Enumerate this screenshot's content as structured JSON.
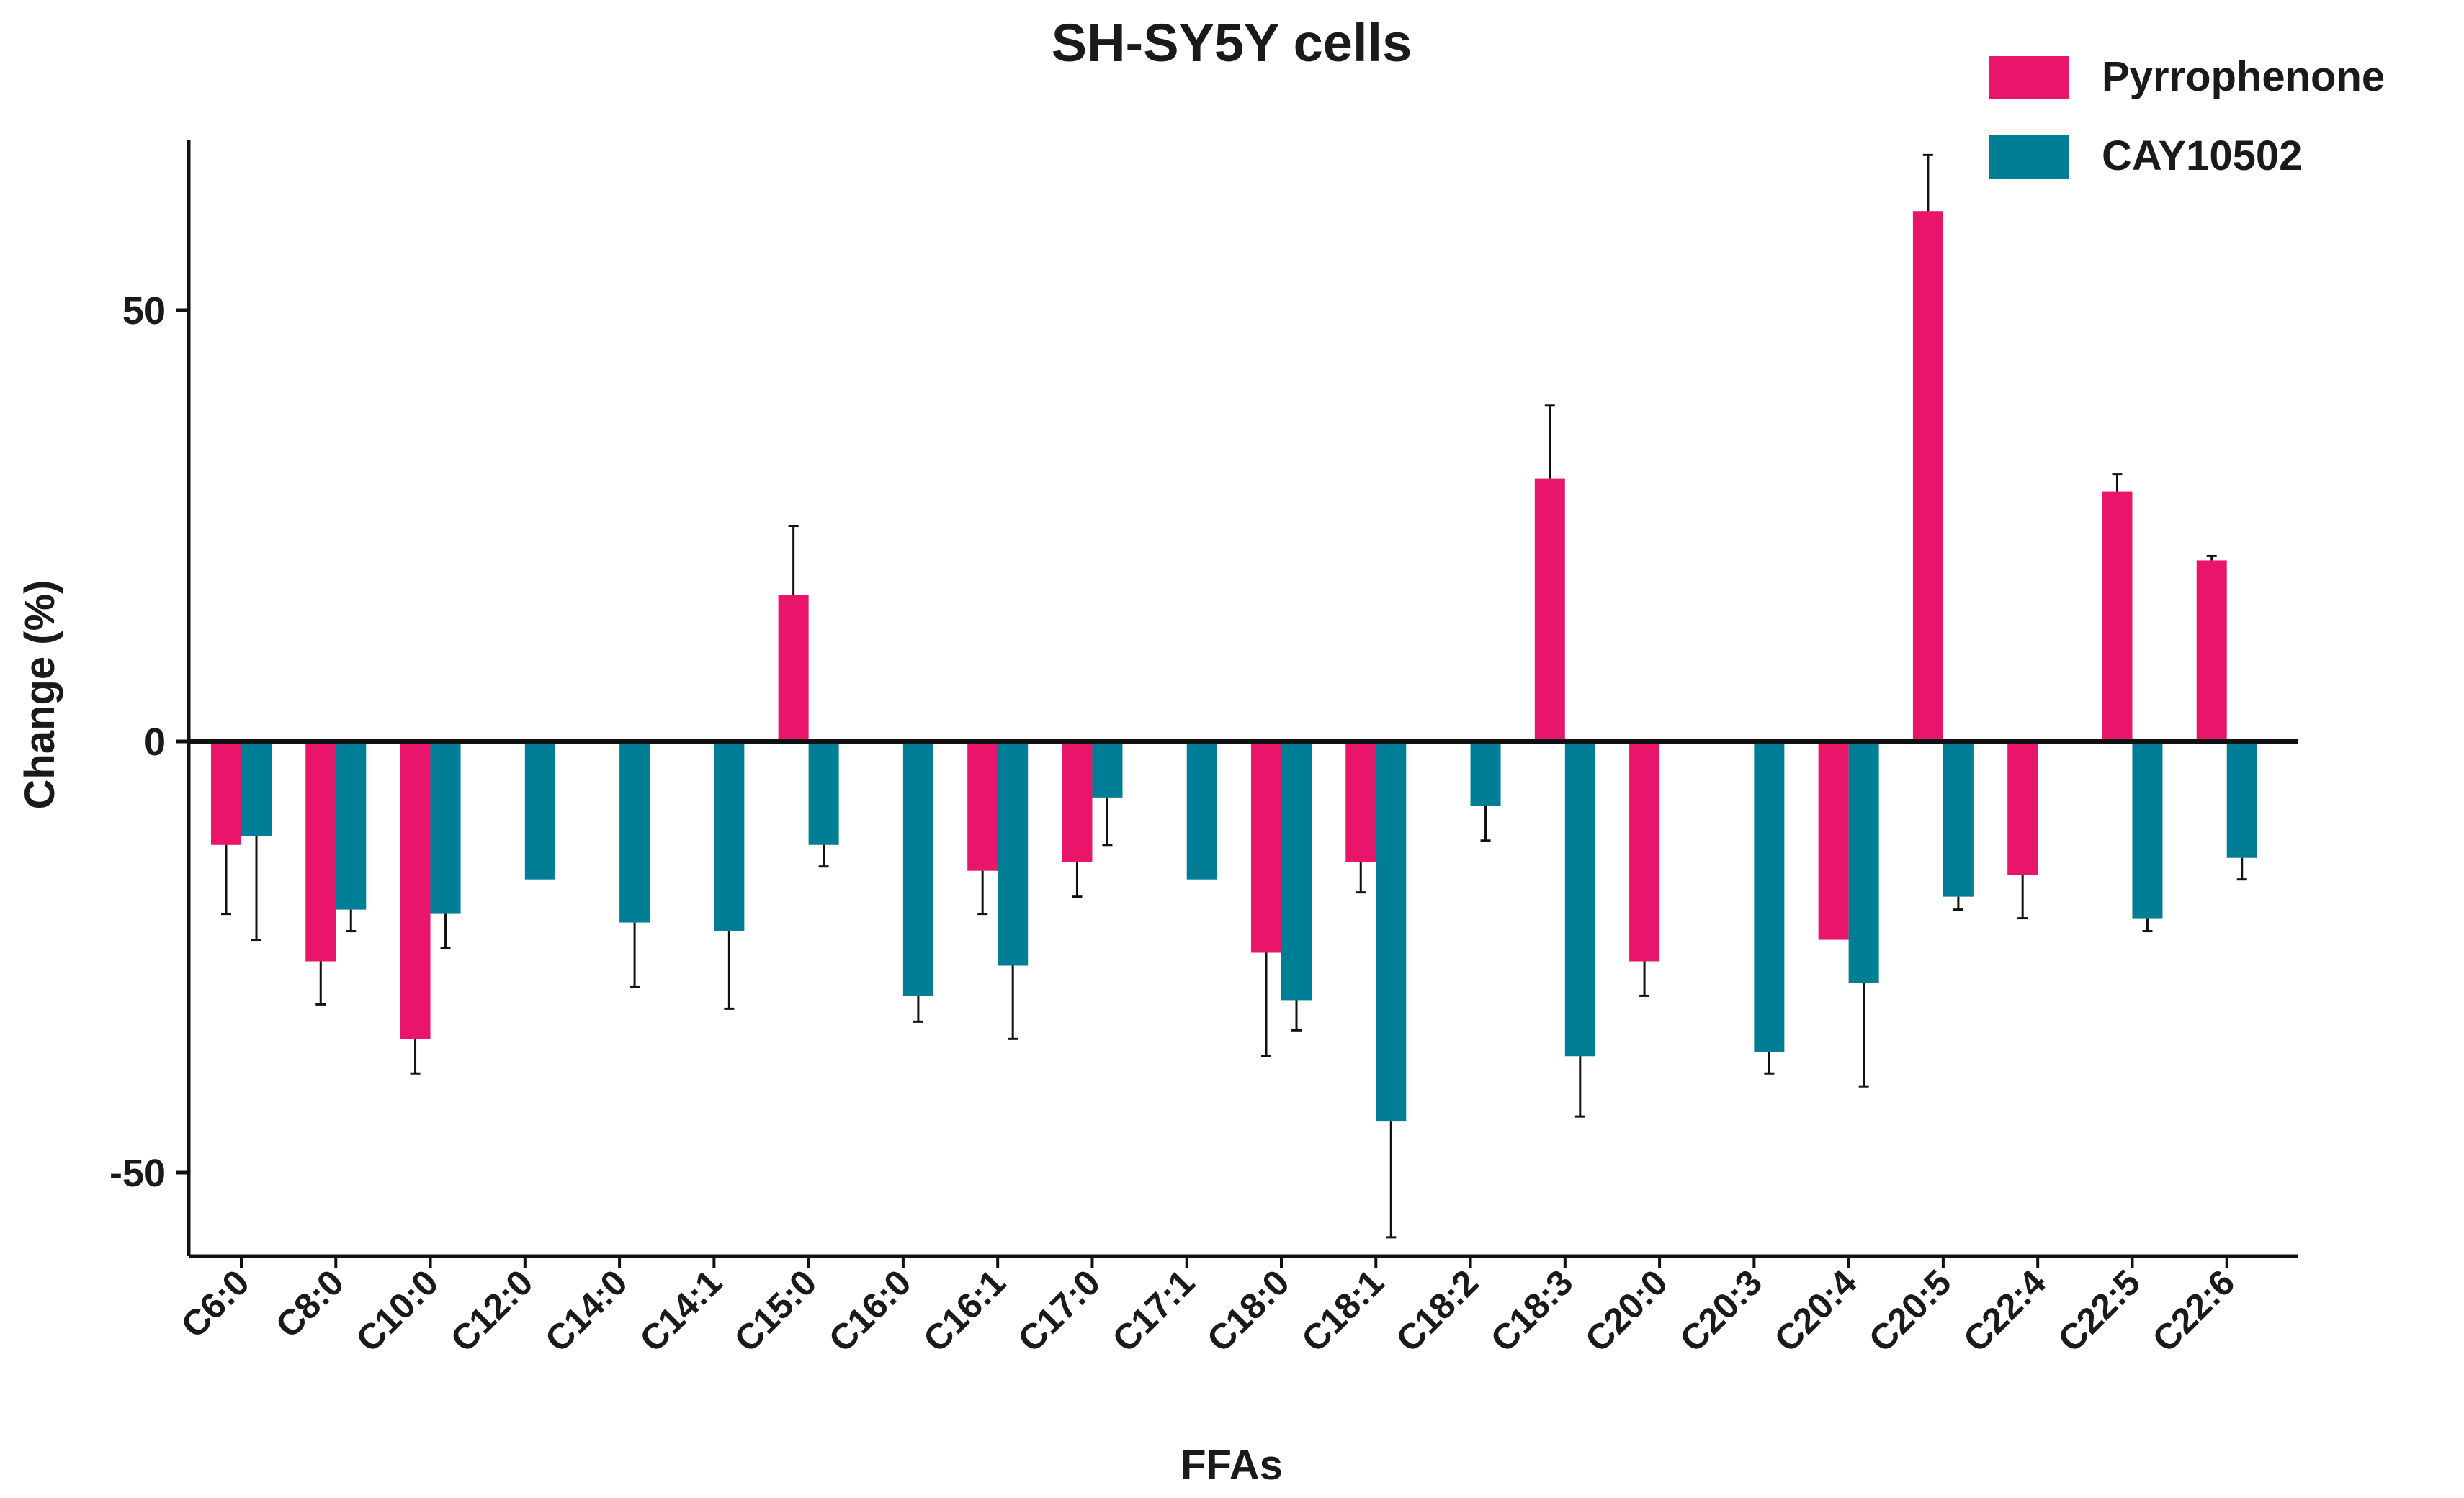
{
  "chart_data": {
    "type": "bar",
    "title": "SH-SY5Y cells",
    "xlabel": "FFAs",
    "ylabel": "Change (%)",
    "ylim": [
      -60,
      70
    ],
    "yticks": [
      -50,
      0,
      50
    ],
    "grid": false,
    "legend_position": "top-right",
    "categories": [
      "C6:0",
      "C8:0",
      "C10:0",
      "C12:0",
      "C14:0",
      "C14:1",
      "C15:0",
      "C16:0",
      "C16:1",
      "C17:0",
      "C17:1",
      "C18:0",
      "C18:1",
      "C18:2",
      "C18:3",
      "C20:0",
      "C20:3",
      "C20:4",
      "C20:5",
      "C22:4",
      "C22:5",
      "C22:6"
    ],
    "series": [
      {
        "name": "Pyrrophenone",
        "color": "#E8156A",
        "values": [
          -12,
          -25.5,
          -34.5,
          null,
          null,
          null,
          17,
          null,
          -15,
          -14,
          null,
          -24.5,
          -14,
          null,
          30.5,
          -25.5,
          null,
          -23,
          61.5,
          -15.5,
          29,
          21
        ],
        "errors": [
          8,
          5,
          4,
          null,
          null,
          null,
          8,
          null,
          5,
          4,
          null,
          12,
          3.5,
          null,
          8.5,
          4,
          null,
          null,
          6.5,
          5,
          2,
          0.5
        ]
      },
      {
        "name": "CAY10502",
        "color": "#007E95",
        "values": [
          -11,
          -19.5,
          -20,
          -16,
          -21,
          -22,
          -12,
          -29.5,
          -26,
          -6.5,
          -16,
          -30,
          -44,
          -7.5,
          -36.5,
          null,
          -36,
          -28,
          -18,
          null,
          -20.5,
          -13.5
        ],
        "errors": [
          12,
          2.5,
          4,
          null,
          7.5,
          9,
          2.5,
          3,
          8.5,
          5.5,
          null,
          3.5,
          13.5,
          4,
          7,
          null,
          2.5,
          12,
          1.5,
          null,
          1.5,
          2.5
        ]
      }
    ]
  }
}
